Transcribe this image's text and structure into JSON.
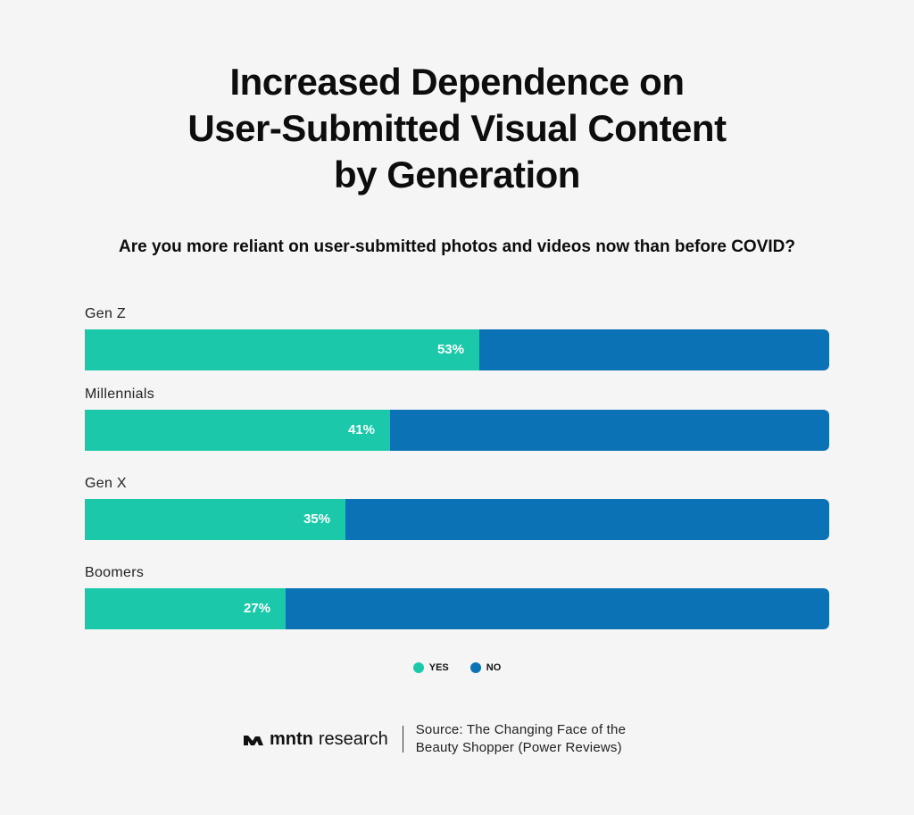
{
  "header": {
    "title_lines": [
      "Increased Dependence on",
      "User-Submitted Visual Content",
      "by Generation"
    ],
    "subtitle": "Are you more reliant on user-submitted photos and videos now than before COVID?"
  },
  "colors": {
    "yes": "#1bc9aa",
    "no": "#0a72b5",
    "background": "#f5f5f5"
  },
  "chart_data": {
    "type": "bar",
    "orientation": "horizontal-stacked-100",
    "title": "Increased Dependence on User-Submitted Visual Content by Generation",
    "subtitle": "Are you more reliant on user-submitted photos and videos now than before COVID?",
    "categories": [
      "Gen Z",
      "Millennials",
      "Gen X",
      "Boomers"
    ],
    "series": [
      {
        "name": "YES",
        "values": [
          53,
          41,
          35,
          27
        ],
        "labels": [
          "53%",
          "41%",
          "35%",
          "27%"
        ]
      },
      {
        "name": "NO",
        "values": [
          47,
          59,
          65,
          73
        ]
      }
    ],
    "xlim": [
      0,
      100
    ],
    "grid": false,
    "legend_position": "bottom-center"
  },
  "legend": {
    "yes_label": "YES",
    "no_label": "NO"
  },
  "footer": {
    "brand_bold": "mntn",
    "brand_rest": "research",
    "source_lines": [
      "Source: The Changing Face of the",
      "Beauty Shopper (Power Reviews)"
    ]
  }
}
